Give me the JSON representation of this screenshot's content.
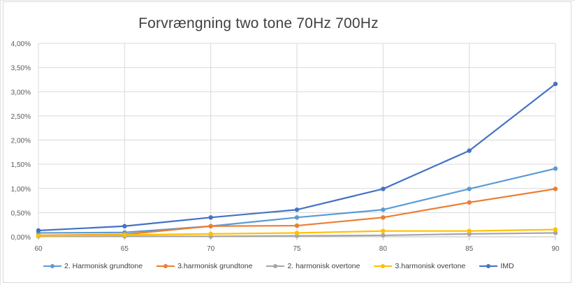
{
  "chart_data": {
    "type": "line",
    "title": "Forvrængning two tone 70Hz 700Hz",
    "xlabel": "",
    "ylabel": "",
    "categories": [
      "60",
      "65",
      "70",
      "75",
      "80",
      "85",
      "90"
    ],
    "x": [
      60,
      65,
      70,
      75,
      80,
      85,
      90
    ],
    "xlim": [
      60,
      90
    ],
    "ylim": [
      0,
      0.04
    ],
    "y_tick_labels": [
      "0,00%",
      "0,50%",
      "1,00%",
      "1,50%",
      "2,00%",
      "2,50%",
      "3,00%",
      "3,50%",
      "4,00%"
    ],
    "y_ticks": [
      0,
      0.005,
      0.01,
      0.015,
      0.02,
      0.025,
      0.03,
      0.035,
      0.04
    ],
    "grid": true,
    "legend_position": "bottom",
    "series": [
      {
        "name": "2. Harmonisk grundtone",
        "color": "#5B9BD5",
        "values": [
          0.0008,
          0.0009,
          0.0022,
          0.004,
          0.0056,
          0.0099,
          0.0141
        ]
      },
      {
        "name": "3.harmonisk grundtone",
        "color": "#ED7D31",
        "values": [
          0.0003,
          0.0005,
          0.0022,
          0.0023,
          0.004,
          0.0071,
          0.0099
        ]
      },
      {
        "name": "2. harmonisk  overtone",
        "color": "#A5A5A5",
        "values": [
          0.0001,
          0.0001,
          0.0001,
          0.0002,
          0.0003,
          0.0006,
          0.0008
        ]
      },
      {
        "name": "3.harmonisk overtone",
        "color": "#FFC000",
        "values": [
          0.0002,
          0.0004,
          0.0006,
          0.0008,
          0.0012,
          0.0012,
          0.0015
        ]
      },
      {
        "name": "IMD",
        "color": "#4472C4",
        "values": [
          0.0013,
          0.0022,
          0.004,
          0.0056,
          0.0099,
          0.0178,
          0.0316
        ]
      }
    ]
  }
}
